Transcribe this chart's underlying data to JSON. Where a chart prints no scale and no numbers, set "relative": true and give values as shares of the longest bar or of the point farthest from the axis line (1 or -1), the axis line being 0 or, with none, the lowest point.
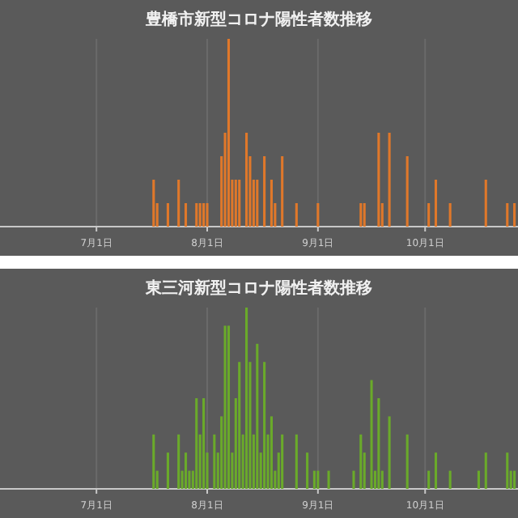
{
  "chart_data": [
    {
      "type": "bar",
      "title": "豊橋市新型コロナ陽性者数推移",
      "relative": true,
      "color": "#e0782a",
      "grid": "x",
      "xlim": [
        "--06-04",
        "--10-27"
      ],
      "xticks": [
        {
          "value": "--07-01",
          "label": "7月1日"
        },
        {
          "value": "--08-01",
          "label": "8月1日"
        },
        {
          "value": "--09-01",
          "label": "9月1日"
        },
        {
          "value": "--10-01",
          "label": "10月1日"
        }
      ],
      "x": [
        "--07-17",
        "--07-18",
        "--07-21",
        "--07-24",
        "--07-26",
        "--07-29",
        "--07-30",
        "--07-31",
        "--08-01",
        "--08-05",
        "--08-06",
        "--08-07",
        "--08-08",
        "--08-09",
        "--08-10",
        "--08-12",
        "--08-13",
        "--08-14",
        "--08-15",
        "--08-17",
        "--08-19",
        "--08-20",
        "--08-22",
        "--08-26",
        "--09-01",
        "--09-13",
        "--09-14",
        "--09-18",
        "--09-19",
        "--09-21",
        "--09-26",
        "--10-02",
        "--10-04",
        "--10-08",
        "--10-18",
        "--10-24",
        "--10-26"
      ],
      "values": [
        0.25,
        0.125,
        0.125,
        0.25,
        0.125,
        0.125,
        0.125,
        0.125,
        0.125,
        0.375,
        0.5,
        1,
        0.25,
        0.25,
        0.25,
        0.5,
        0.375,
        0.25,
        0.25,
        0.375,
        0.25,
        0.125,
        0.375,
        0.125,
        0.125,
        0.125,
        0.125,
        0.5,
        0.125,
        0.5,
        0.375,
        0.125,
        0.25,
        0.125,
        0.25,
        0.125,
        0.125
      ]
    },
    {
      "type": "bar",
      "title": "東三河新型コロナ陽性者数推移",
      "relative": true,
      "color": "#6aaa2a",
      "grid": "x",
      "xlim": [
        "--06-04",
        "--10-27"
      ],
      "xticks": [
        {
          "value": "--07-01",
          "label": "7月1日"
        },
        {
          "value": "--08-01",
          "label": "8月1日"
        },
        {
          "value": "--09-01",
          "label": "9月1日"
        },
        {
          "value": "--10-01",
          "label": "10月1日"
        }
      ],
      "x": [
        "--07-17",
        "--07-18",
        "--07-21",
        "--07-24",
        "--07-25",
        "--07-26",
        "--07-27",
        "--07-28",
        "--07-29",
        "--07-30",
        "--07-31",
        "--08-01",
        "--08-03",
        "--08-04",
        "--08-05",
        "--08-06",
        "--08-07",
        "--08-08",
        "--08-09",
        "--08-10",
        "--08-11",
        "--08-12",
        "--08-13",
        "--08-14",
        "--08-15",
        "--08-16",
        "--08-17",
        "--08-18",
        "--08-19",
        "--08-20",
        "--08-21",
        "--08-22",
        "--08-26",
        "--08-29",
        "--08-31",
        "--09-01",
        "--09-04",
        "--09-11",
        "--09-13",
        "--09-14",
        "--09-16",
        "--09-17",
        "--09-18",
        "--09-19",
        "--09-21",
        "--09-26",
        "--10-02",
        "--10-04",
        "--10-08",
        "--10-16",
        "--10-18",
        "--10-24",
        "--10-25",
        "--10-26"
      ],
      "values": [
        0.3,
        0.1,
        0.2,
        0.3,
        0.1,
        0.2,
        0.1,
        0.1,
        0.5,
        0.3,
        0.5,
        0.2,
        0.3,
        0.2,
        0.4,
        0.9,
        0.9,
        0.2,
        0.5,
        0.7,
        0.3,
        1,
        0.7,
        0.3,
        0.8,
        0.2,
        0.7,
        0.3,
        0.4,
        0.1,
        0.2,
        0.3,
        0.3,
        0.2,
        0.1,
        0.1,
        0.1,
        0.1,
        0.3,
        0.2,
        0.6,
        0.1,
        0.5,
        0.1,
        0.4,
        0.3,
        0.1,
        0.2,
        0.1,
        0.1,
        0.2,
        0.2,
        0.1,
        0.1
      ]
    }
  ]
}
